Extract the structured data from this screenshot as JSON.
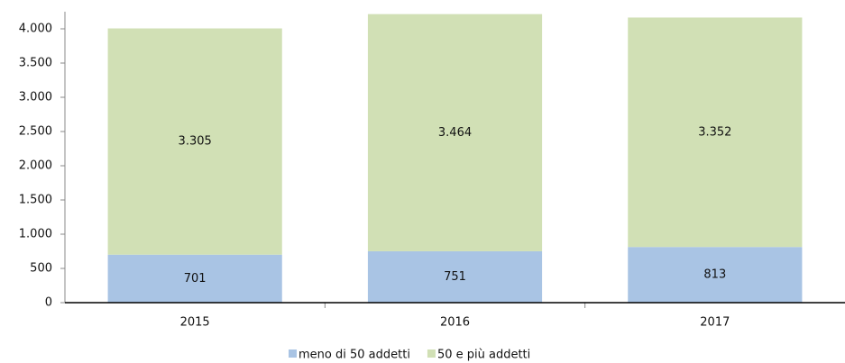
{
  "chart_data": {
    "type": "stacked_bar",
    "categories": [
      "2015",
      "2016",
      "2017"
    ],
    "series": [
      {
        "name": "meno di 50 addetti",
        "color": "#a9c4e4",
        "values": [
          701,
          751,
          813
        ]
      },
      {
        "name": "50 e più addetti",
        "color": "#d1e0b5",
        "values": [
          3305,
          3464,
          3352
        ],
        "value_labels": [
          "3.305",
          "3.464",
          "3.352"
        ]
      }
    ],
    "ylim": [
      0,
      4250
    ],
    "yticks": [
      0,
      500,
      {
        "value": 1000,
        "label": "1.000"
      },
      {
        "value": 1500,
        "label": "1.500"
      },
      {
        "value": 2000,
        "label": "2.000"
      },
      {
        "value": 2500,
        "label": "2.500"
      },
      {
        "value": 3000,
        "label": "3.000"
      },
      {
        "value": 3500,
        "label": "3.500"
      },
      {
        "value": 4000,
        "label": "4.000"
      }
    ],
    "legend": "bottom"
  }
}
